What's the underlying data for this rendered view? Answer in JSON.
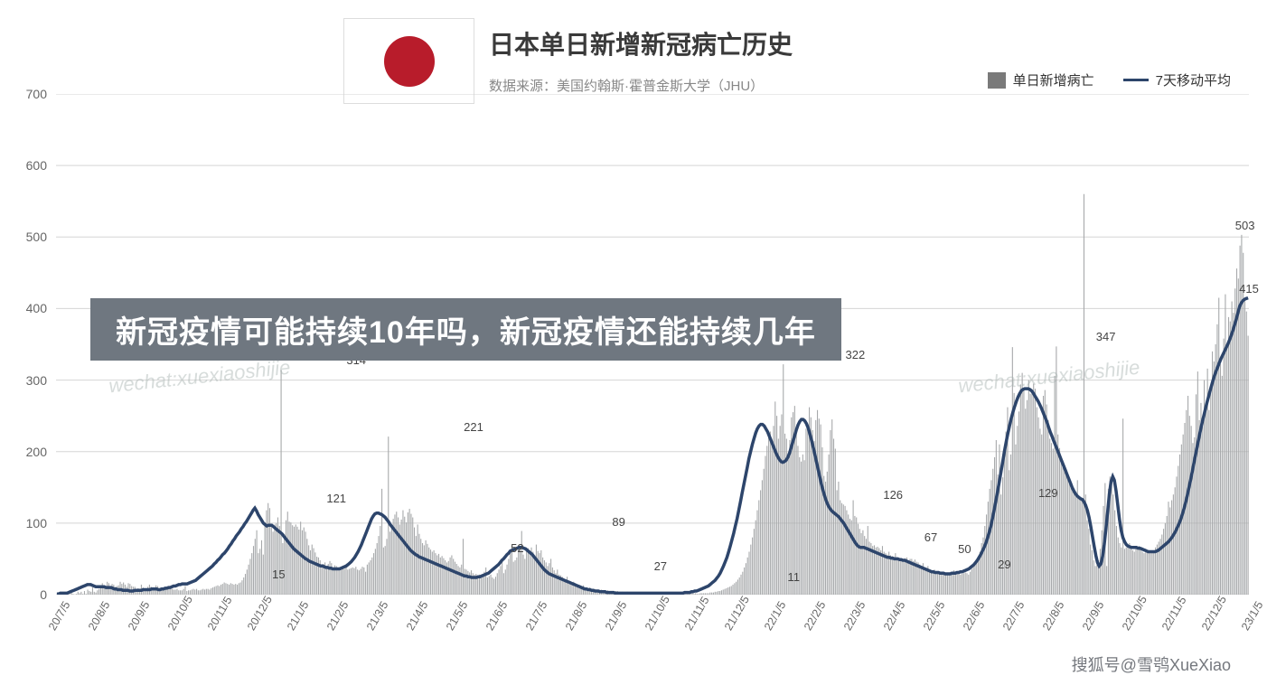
{
  "header": {
    "title": "日本单日新增新冠病亡历史",
    "subtitle": "数据来源：美国约翰斯·霍普金斯大学（JHU）",
    "flag_circle_color": "#b81c2b"
  },
  "legend": {
    "bar_label": "单日新增病亡",
    "bar_color": "#7a7a7a",
    "line_label": "7天移动平均",
    "line_color": "#2d456b"
  },
  "overlay": {
    "text": "新冠疫情可能持续10年吗，新冠疫情还能持续几年",
    "bg": "#6f7780",
    "color": "#ffffff"
  },
  "watermarks": {
    "text": "wechat:xuexiaoshijie",
    "color": "#a7b3b0",
    "positions": [
      [
        120,
        404
      ],
      [
        1060,
        404
      ]
    ]
  },
  "credit": {
    "text": "搜狐号@雪鸮XueXiao",
    "color": "#5d6168"
  },
  "chart": {
    "type": "bar+line",
    "bar_color": "#a7a9ab",
    "line_color": "#2d456b",
    "background_color": "#ffffff",
    "grid_color": "#d5d5d5",
    "ylim": [
      0,
      700
    ],
    "ytick_step": 100,
    "yticks": [
      0,
      100,
      200,
      300,
      400,
      500,
      600,
      700
    ],
    "x_labels": [
      "20/7/5",
      "20/8/5",
      "20/9/5",
      "20/10/5",
      "20/11/5",
      "20/12/5",
      "21/1/5",
      "21/2/5",
      "21/3/5",
      "21/4/5",
      "21/5/5",
      "21/6/5",
      "21/7/5",
      "21/8/5",
      "21/9/5",
      "21/10/5",
      "21/11/5",
      "21/12/5",
      "22/1/5",
      "22/2/5",
      "22/3/5",
      "22/4/5",
      "22/5/5",
      "22/6/5",
      "22/7/5",
      "22/8/5",
      "22/9/5",
      "22/10/5",
      "22/11/5",
      "22/12/5",
      "23/1/5"
    ],
    "annotations": [
      {
        "x_idx": 5.6,
        "y": 15,
        "label": "15"
      },
      {
        "x_idx": 7.05,
        "y": 121,
        "label": "121"
      },
      {
        "x_idx": 7.55,
        "y": 314,
        "label": "314"
      },
      {
        "x_idx": 10.5,
        "y": 221,
        "label": "221"
      },
      {
        "x_idx": 11.6,
        "y": 52,
        "label": "52"
      },
      {
        "x_idx": 14.15,
        "y": 89,
        "label": "89"
      },
      {
        "x_idx": 15.2,
        "y": 27,
        "label": "27"
      },
      {
        "x_idx": 18.55,
        "y": 11,
        "label": "11"
      },
      {
        "x_idx": 20.1,
        "y": 322,
        "label": "322"
      },
      {
        "x_idx": 21.05,
        "y": 126,
        "label": "126"
      },
      {
        "x_idx": 22.0,
        "y": 67,
        "label": "67"
      },
      {
        "x_idx": 22.85,
        "y": 50,
        "label": "50"
      },
      {
        "x_idx": 23.85,
        "y": 29,
        "label": "29"
      },
      {
        "x_idx": 24.95,
        "y": 129,
        "label": "129"
      },
      {
        "x_idx": 26.4,
        "y": 347,
        "label": "347"
      },
      {
        "x_idx": 29.9,
        "y": 503,
        "label": "503"
      },
      {
        "x_idx": 30.0,
        "y": 415,
        "label": "415"
      }
    ],
    "ma7": [
      1,
      1,
      2,
      2,
      2,
      2,
      2,
      3,
      4,
      5,
      6,
      7,
      8,
      9,
      10,
      11,
      12,
      13,
      14,
      14,
      14,
      13,
      12,
      11,
      11,
      11,
      11,
      11,
      11,
      10,
      10,
      10,
      10,
      9,
      8,
      8,
      7,
      7,
      7,
      6,
      6,
      6,
      6,
      5,
      5,
      5,
      6,
      6,
      6,
      6,
      6,
      7,
      7,
      7,
      7,
      7,
      8,
      8,
      8,
      8,
      7,
      7,
      8,
      8,
      9,
      9,
      10,
      10,
      11,
      12,
      12,
      13,
      14,
      14,
      15,
      15,
      15,
      15,
      16,
      17,
      18,
      19,
      20,
      22,
      24,
      26,
      28,
      30,
      32,
      34,
      36,
      38,
      40,
      43,
      45,
      48,
      50,
      53,
      56,
      58,
      61,
      64,
      68,
      71,
      75,
      78,
      82,
      85,
      88,
      92,
      95,
      99,
      102,
      106,
      110,
      114,
      118,
      121,
      117,
      112,
      108,
      104,
      100,
      98,
      96,
      97,
      97,
      97,
      95,
      93,
      91,
      89,
      87,
      85,
      82,
      79,
      76,
      73,
      70,
      67,
      64,
      62,
      60,
      58,
      56,
      54,
      52,
      50,
      49,
      47,
      46,
      45,
      44,
      43,
      42,
      41,
      40,
      40,
      39,
      38,
      38,
      37,
      37,
      36,
      36,
      36,
      36,
      36,
      37,
      38,
      39,
      40,
      42,
      44,
      46,
      49,
      52,
      56,
      60,
      65,
      70,
      76,
      82,
      88,
      94,
      100,
      106,
      110,
      113,
      114,
      114,
      113,
      112,
      110,
      108,
      105,
      102,
      98,
      95,
      92,
      89,
      86,
      83,
      80,
      77,
      74,
      71,
      68,
      65,
      62,
      60,
      58,
      56,
      55,
      53,
      52,
      51,
      50,
      49,
      48,
      47,
      46,
      45,
      44,
      43,
      42,
      41,
      40,
      39,
      38,
      37,
      36,
      35,
      34,
      33,
      32,
      31,
      30,
      29,
      28,
      27,
      26,
      26,
      25,
      25,
      24,
      24,
      24,
      24,
      25,
      25,
      26,
      27,
      28,
      29,
      30,
      32,
      34,
      36,
      38,
      40,
      42,
      45,
      48,
      50,
      53,
      56,
      58,
      61,
      62,
      63,
      64,
      65,
      66,
      66,
      66,
      65,
      64,
      62,
      60,
      58,
      56,
      53,
      50,
      47,
      44,
      41,
      38,
      35,
      33,
      31,
      29,
      28,
      27,
      26,
      25,
      24,
      23,
      22,
      21,
      20,
      19,
      18,
      17,
      16,
      15,
      14,
      13,
      12,
      11,
      10,
      9,
      8,
      8,
      7,
      7,
      6,
      6,
      5,
      5,
      5,
      4,
      4,
      4,
      4,
      3,
      3,
      3,
      3,
      3,
      2,
      2,
      2,
      2,
      2,
      2,
      2,
      2,
      2,
      2,
      2,
      2,
      2,
      2,
      2,
      2,
      2,
      2,
      2,
      2,
      2,
      2,
      2,
      2,
      2,
      2,
      2,
      2,
      2,
      2,
      2,
      2,
      2,
      2,
      2,
      2,
      2,
      2,
      2,
      2,
      2,
      3,
      3,
      3,
      3,
      4,
      4,
      5,
      5,
      6,
      7,
      8,
      9,
      10,
      11,
      12,
      14,
      16,
      18,
      20,
      23,
      26,
      30,
      35,
      40,
      46,
      52,
      60,
      68,
      77,
      86,
      96,
      106,
      118,
      130,
      142,
      154,
      166,
      178,
      190,
      200,
      210,
      218,
      226,
      232,
      236,
      238,
      238,
      236,
      232,
      228,
      222,
      216,
      210,
      204,
      198,
      193,
      189,
      186,
      185,
      186,
      188,
      192,
      198,
      206,
      214,
      222,
      230,
      237,
      242,
      245,
      245,
      243,
      239,
      233,
      225,
      216,
      206,
      196,
      185,
      174,
      163,
      153,
      144,
      136,
      129,
      124,
      120,
      117,
      115,
      113,
      111,
      109,
      106,
      103,
      100,
      96,
      92,
      88,
      84,
      80,
      76,
      72,
      69,
      67,
      66,
      66,
      66,
      65,
      64,
      63,
      62,
      61,
      60,
      59,
      58,
      57,
      56,
      55,
      54,
      53,
      52,
      52,
      51,
      51,
      50,
      50,
      50,
      49,
      49,
      48,
      48,
      47,
      46,
      45,
      44,
      43,
      42,
      41,
      40,
      39,
      38,
      37,
      36,
      35,
      34,
      33,
      32,
      32,
      31,
      31,
      31,
      30,
      30,
      30,
      29,
      29,
      29,
      29,
      30,
      30,
      30,
      31,
      31,
      32,
      32,
      33,
      34,
      35,
      36,
      38,
      40,
      42,
      45,
      48,
      52,
      56,
      61,
      66,
      72,
      79,
      87,
      96,
      107,
      119,
      132,
      145,
      158,
      172,
      186,
      200,
      213,
      225,
      236,
      246,
      255,
      263,
      270,
      276,
      281,
      285,
      287,
      288,
      288,
      288,
      287,
      285,
      282,
      278,
      274,
      270,
      265,
      260,
      254,
      248,
      242,
      235,
      228,
      222,
      216,
      210,
      204,
      198,
      192,
      186,
      180,
      174,
      168,
      162,
      156,
      150,
      145,
      141,
      138,
      136,
      134,
      133,
      130,
      125,
      118,
      108,
      96,
      82,
      68,
      55,
      45,
      40,
      43,
      53,
      70,
      92,
      116,
      140,
      158,
      165,
      160,
      145,
      125,
      105,
      90,
      80,
      74,
      70,
      68,
      67,
      66,
      66,
      66,
      66,
      65,
      65,
      64,
      63,
      62,
      61,
      60,
      60,
      60,
      60,
      60,
      61,
      62,
      64,
      66,
      68,
      70,
      72,
      74,
      77,
      80,
      84,
      88,
      93,
      98,
      104,
      111,
      119,
      128,
      138,
      149,
      160,
      172,
      184,
      196,
      208,
      220,
      231,
      242,
      252,
      262,
      271,
      280,
      289,
      297,
      305,
      312,
      318,
      324,
      330,
      335,
      340,
      345,
      350,
      356,
      362,
      369,
      377,
      385,
      394,
      403,
      408,
      411,
      413,
      414,
      415
    ],
    "bars": [
      0,
      0,
      0,
      1,
      3,
      0,
      1,
      0,
      0,
      3,
      1,
      0,
      1,
      4,
      2,
      4,
      1,
      5,
      1,
      7,
      5,
      4,
      10,
      4,
      3,
      6,
      8,
      10,
      16,
      13,
      11,
      18,
      16,
      12,
      15,
      14,
      11,
      12,
      13,
      18,
      15,
      17,
      14,
      11,
      16,
      15,
      12,
      11,
      11,
      8,
      9,
      7,
      14,
      10,
      6,
      6,
      11,
      14,
      11,
      9,
      6,
      13,
      12,
      9,
      10,
      7,
      9,
      9,
      10,
      8,
      8,
      8,
      7,
      7,
      8,
      6,
      6,
      6,
      8,
      12,
      5,
      6,
      6,
      7,
      8,
      7,
      8,
      6,
      6,
      7,
      8,
      7,
      8,
      8,
      7,
      9,
      10,
      11,
      12,
      13,
      12,
      14,
      15,
      17,
      16,
      15,
      14,
      16,
      15,
      14,
      15,
      14,
      16,
      17,
      20,
      24,
      29,
      35,
      42,
      50,
      58,
      68,
      78,
      90,
      58,
      64,
      76,
      56,
      101,
      118,
      128,
      121,
      97,
      88,
      98,
      100,
      108,
      96,
      314,
      72,
      85,
      104,
      116,
      102,
      101,
      97,
      95,
      98,
      95,
      91,
      102,
      90,
      94,
      88,
      78,
      69,
      62,
      70,
      65,
      59,
      53,
      52,
      48,
      39,
      43,
      45,
      38,
      43,
      47,
      44,
      38,
      41,
      40,
      37,
      36,
      38,
      38,
      36,
      38,
      35,
      36,
      37,
      38,
      37,
      39,
      35,
      34,
      36,
      39,
      38,
      32,
      42,
      45,
      48,
      52,
      58,
      64,
      72,
      82,
      96,
      148,
      66,
      68,
      78,
      221,
      88,
      94,
      106,
      112,
      116,
      108,
      98,
      105,
      118,
      109,
      101,
      115,
      120,
      113,
      108,
      94,
      82,
      98,
      85,
      78,
      72,
      69,
      76,
      71,
      66,
      63,
      60,
      62,
      58,
      55,
      57,
      52,
      54,
      51,
      48,
      45,
      47,
      52,
      55,
      50,
      46,
      43,
      40,
      38,
      42,
      78,
      36,
      35,
      33,
      31,
      34,
      30,
      28,
      29,
      27,
      28,
      26,
      25,
      32,
      38,
      24,
      26,
      28,
      24,
      22,
      25,
      30,
      35,
      40,
      48,
      30,
      35,
      42,
      50,
      58,
      60,
      46,
      48,
      52,
      64,
      62,
      89,
      56,
      50,
      62,
      65,
      58,
      66,
      60,
      55,
      70,
      61,
      58,
      62,
      52,
      48,
      45,
      40,
      44,
      50,
      38,
      34,
      30,
      35,
      28,
      27,
      25,
      22,
      20,
      25,
      18,
      16,
      15,
      18,
      14,
      13,
      12,
      11,
      10,
      13,
      9,
      9,
      8,
      10,
      8,
      7,
      8,
      7,
      6,
      6,
      7,
      6,
      5,
      5,
      6,
      5,
      5,
      4,
      4,
      5,
      5,
      4,
      4,
      4,
      3,
      3,
      4,
      3,
      3,
      2,
      2,
      3,
      2,
      2,
      2,
      2,
      2,
      2,
      2,
      2,
      2,
      1,
      2,
      2,
      2,
      2,
      2,
      2,
      2,
      2,
      2,
      2,
      2,
      2,
      2,
      1,
      2,
      2,
      1,
      2,
      2,
      1,
      2,
      2,
      2,
      1,
      2,
      1,
      2,
      1,
      1,
      2,
      2,
      2,
      2,
      2,
      2,
      3,
      3,
      3,
      4,
      4,
      5,
      5,
      6,
      7,
      8,
      9,
      10,
      11,
      12,
      14,
      16,
      18,
      21,
      24,
      28,
      32,
      38,
      44,
      52,
      60,
      70,
      80,
      92,
      104,
      118,
      132,
      146,
      160,
      176,
      194,
      208,
      220,
      228,
      210,
      236,
      270,
      250,
      218,
      236,
      252,
      322,
      225,
      218,
      198,
      216,
      248,
      255,
      264,
      226,
      208,
      192,
      186,
      196,
      188,
      232,
      236,
      262,
      248,
      230,
      215,
      244,
      258,
      246,
      238,
      206,
      166,
      158,
      172,
      196,
      230,
      245,
      218,
      204,
      146,
      158,
      132,
      128,
      126,
      124,
      118,
      112,
      106,
      104,
      132,
      110,
      108,
      99,
      92,
      86,
      90,
      82,
      78,
      96,
      74,
      72,
      68,
      69,
      66,
      67,
      65,
      62,
      68,
      60,
      58,
      56,
      60,
      55,
      54,
      52,
      58,
      51,
      50,
      48,
      50,
      49,
      51,
      52,
      48,
      50,
      50,
      47,
      49,
      46,
      45,
      42,
      40,
      44,
      38,
      36,
      40,
      34,
      33,
      32,
      35,
      31,
      30,
      30,
      32,
      28,
      29,
      30,
      28,
      29,
      32,
      30,
      34,
      32,
      29,
      30,
      28,
      29,
      30,
      31,
      30,
      28,
      32,
      36,
      40,
      45,
      48,
      52,
      60,
      72,
      80,
      96,
      112,
      130,
      148,
      160,
      176,
      192,
      216,
      168,
      210,
      140,
      164,
      204,
      228,
      262,
      174,
      196,
      346,
      282,
      210,
      236,
      256,
      294,
      310,
      288,
      260,
      272,
      300,
      281,
      284,
      295,
      288,
      262,
      248,
      232,
      224,
      278,
      286,
      266,
      244,
      218,
      212,
      204,
      306,
      347,
      224,
      205,
      190,
      180,
      176,
      172,
      164,
      158,
      152,
      148,
      144,
      140,
      160,
      138,
      136,
      132,
      560,
      140,
      104,
      92,
      70,
      62,
      48,
      40,
      42,
      48,
      64,
      90,
      124,
      156,
      40,
      148,
      165,
      158,
      140,
      118,
      96,
      80,
      72,
      66,
      246,
      64,
      66,
      70,
      72,
      68,
      62,
      60,
      64,
      66,
      68,
      62,
      60,
      58,
      64,
      62,
      60,
      58,
      60,
      62,
      66,
      70,
      74,
      78,
      84,
      92,
      100,
      110,
      130,
      122,
      132,
      140,
      150,
      165,
      180,
      196,
      210,
      224,
      240,
      258,
      278,
      250,
      236,
      212,
      220,
      280,
      312,
      244,
      268,
      235,
      300,
      265,
      316,
      258,
      290,
      340,
      326,
      350,
      378,
      415,
      322,
      306,
      358,
      420,
      350,
      388,
      382,
      410,
      394,
      428,
      456,
      442,
      488,
      503,
      478,
      410,
      396,
      362
    ]
  }
}
